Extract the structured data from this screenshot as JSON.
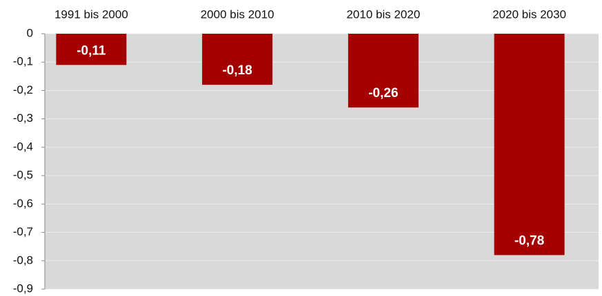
{
  "chart_data": {
    "type": "bar",
    "categories": [
      "1991 bis 2000",
      "2000 bis 2010",
      "2010 bis 2020",
      "2020 bis 2030"
    ],
    "values": [
      -0.11,
      -0.18,
      -0.26,
      -0.78
    ],
    "value_labels": [
      "-0,11",
      "-0,18",
      "-0,26",
      "-0,78"
    ],
    "color": "#a50000",
    "ylim": [
      -0.9,
      0
    ],
    "yticks": [
      0,
      {
        "value": -0.1,
        "label": "-0,1"
      },
      {
        "value": -0.2,
        "label": "-0,2"
      },
      {
        "value": -0.3,
        "label": "-0,3"
      },
      {
        "value": -0.4,
        "label": "-0,4"
      },
      {
        "value": -0.5,
        "label": "-0,5"
      },
      {
        "value": -0.6,
        "label": "-0,6"
      },
      {
        "value": -0.7,
        "label": "-0,7"
      },
      {
        "value": -0.8,
        "label": "-0,8"
      },
      {
        "value": -0.9,
        "label": "-0,9"
      }
    ],
    "grid": true
  }
}
